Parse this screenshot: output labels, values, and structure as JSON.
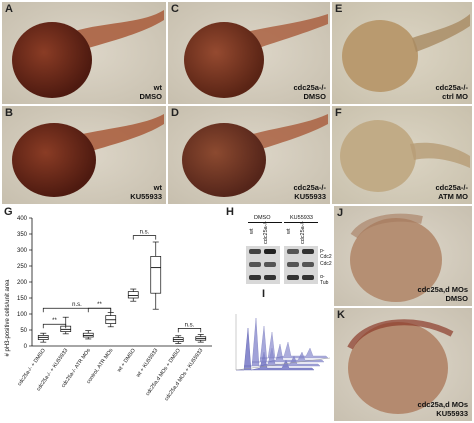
{
  "panels": [
    {
      "id": "A",
      "caption": [
        "wt",
        "DMSO"
      ]
    },
    {
      "id": "B",
      "caption": [
        "wt",
        "KU55933"
      ]
    },
    {
      "id": "C",
      "caption": [
        "cdc25a-/-",
        "DMSO"
      ]
    },
    {
      "id": "D",
      "caption": [
        "cdc25a-/-",
        "KU55933"
      ]
    },
    {
      "id": "E",
      "caption": [
        "cdc25a-/-",
        "ctrl MO"
      ]
    },
    {
      "id": "F",
      "caption": [
        "cdc25a-/-",
        "ATM MO"
      ]
    },
    {
      "id": "J",
      "caption": [
        "cdc25a,d MOs",
        "DMSO"
      ]
    },
    {
      "id": "K",
      "caption": [
        "cdc25a,d MOs",
        "KU55933"
      ]
    }
  ],
  "panel_G": {
    "label": "G"
  },
  "panel_H": {
    "label": "H",
    "groups": [
      "DMSO",
      "KU55933"
    ],
    "lanes": [
      "wt",
      "cdc25a-/-",
      "wt",
      "cdc25a-/-"
    ],
    "bands": [
      "p-Cdc2",
      "Cdc2",
      "α-Tub"
    ]
  },
  "panel_I": {
    "label": "I"
  },
  "chart_data": {
    "type": "box",
    "ylabel": "# pH3-positive cells/unit area",
    "ylim": [
      0,
      400
    ],
    "yticks": [
      0,
      50,
      100,
      150,
      200,
      250,
      300,
      350,
      400
    ],
    "categories": [
      "cdc25a-/- + DMSO",
      "cdc25a-/- + KU55933",
      "cdc25a-/- ATR MOs",
      "control, ATR MOs",
      "wt + DMSO",
      "wt + KU55933",
      "cdc25a,d MOs + DMSO",
      "cdc25a,d MOs + KU55933"
    ],
    "boxes": [
      {
        "min": 12,
        "q1": 20,
        "median": 27,
        "q3": 33,
        "max": 40
      },
      {
        "min": 38,
        "q1": 45,
        "median": 52,
        "q3": 62,
        "max": 90
      },
      {
        "min": 22,
        "q1": 28,
        "median": 33,
        "q3": 40,
        "max": 48
      },
      {
        "min": 60,
        "q1": 70,
        "median": 82,
        "q3": 95,
        "max": 105
      },
      {
        "min": 140,
        "q1": 150,
        "median": 158,
        "q3": 170,
        "max": 178
      },
      {
        "min": 115,
        "q1": 165,
        "median": 245,
        "q3": 280,
        "max": 325
      },
      {
        "min": 8,
        "q1": 14,
        "median": 20,
        "q3": 26,
        "max": 32
      },
      {
        "min": 12,
        "q1": 18,
        "median": 23,
        "q3": 29,
        "max": 36
      }
    ],
    "annotations": [
      {
        "text": "n.s.",
        "from": 0,
        "to": 3,
        "y": 118
      },
      {
        "text": "**",
        "from": 0,
        "to": 1,
        "y": 68
      },
      {
        "text": "**",
        "from": 2,
        "to": 3,
        "y": 118
      },
      {
        "text": "n.s.",
        "from": 4,
        "to": 5,
        "y": 345
      },
      {
        "text": "n.s.",
        "from": 6,
        "to": 7,
        "y": 55
      }
    ]
  }
}
